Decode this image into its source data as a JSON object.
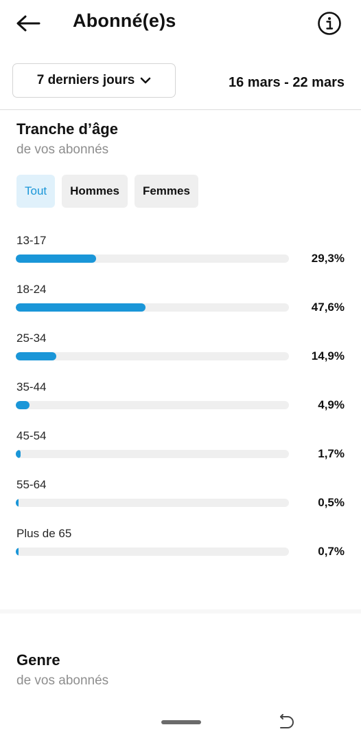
{
  "header": {
    "title": "Abonné(e)s",
    "back_icon": "arrow-left-icon",
    "info_icon": "info-circle-icon"
  },
  "period": {
    "label": "7 derniers jours",
    "chevron_icon": "chevron-down-icon",
    "date_range": "16 mars - 22 mars"
  },
  "age_section": {
    "title": "Tranche d’âge",
    "subtitle": "de vos abonnés",
    "filters": [
      {
        "label": "Tout",
        "selected": true
      },
      {
        "label": "Hommes",
        "selected": false
      },
      {
        "label": "Femmes",
        "selected": false
      }
    ]
  },
  "chart_data": {
    "type": "bar",
    "orientation": "horizontal",
    "categories": [
      "13-17",
      "18-24",
      "25-34",
      "35-44",
      "45-54",
      "55-64",
      "Plus de 65"
    ],
    "values": [
      29.3,
      47.6,
      14.9,
      4.9,
      1.7,
      0.5,
      0.7
    ],
    "value_labels": [
      "29,3%",
      "47,6%",
      "14,9%",
      "4,9%",
      "1,7%",
      "0,5%",
      "0,7%"
    ],
    "unit": "%",
    "xlim": [
      0,
      100
    ],
    "bar_color": "#1a96d8",
    "track_color": "#efefef"
  },
  "gender_section": {
    "title": "Genre",
    "subtitle": "de vos abonnés"
  },
  "system_nav": {
    "home_icon": "home-pill-icon",
    "back_icon": "system-back-icon"
  },
  "colors": {
    "accent": "#1a96d8",
    "chip_active_bg": "#e0f1fb",
    "chip_bg": "#efefef",
    "muted_text": "#8e8e8e"
  }
}
